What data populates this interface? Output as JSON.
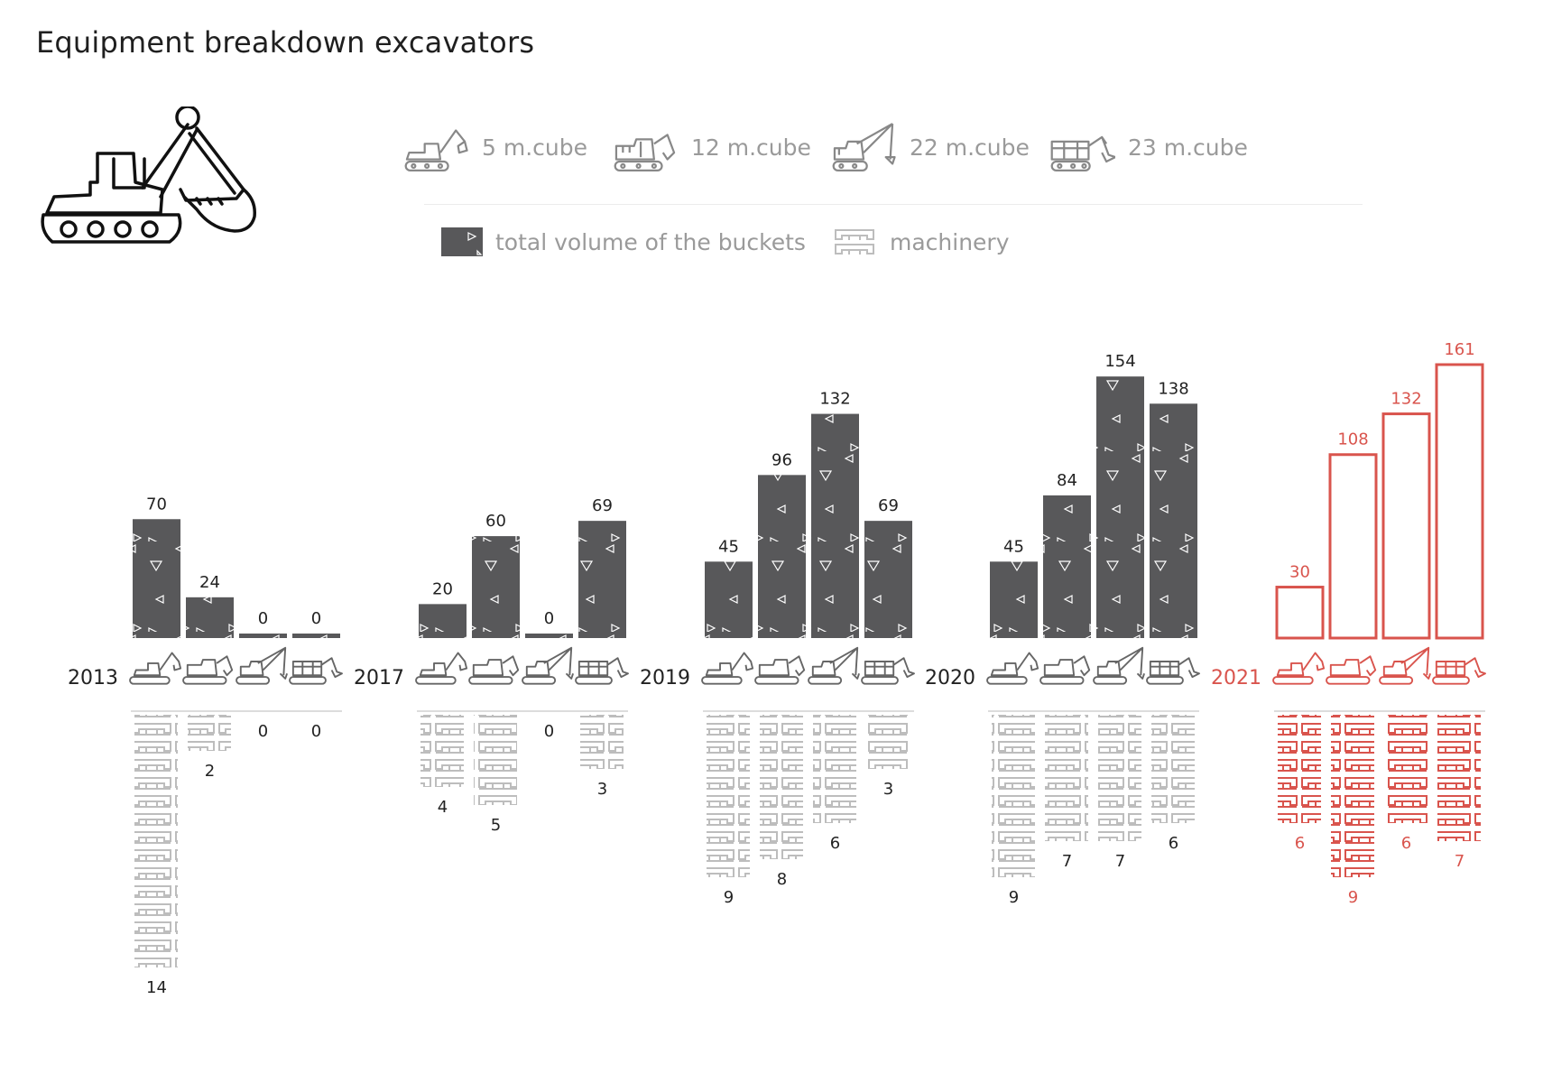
{
  "title": "Equipment breakdown excavators",
  "legend": {
    "equipment": [
      {
        "label": "5 m.cube",
        "icon": "excavator-small-icon"
      },
      {
        "label": "12 m.cube",
        "icon": "excavator-shovel-icon"
      },
      {
        "label": "22 m.cube",
        "icon": "excavator-dragline-icon"
      },
      {
        "label": "23 m.cube",
        "icon": "excavator-large-icon"
      }
    ],
    "volume_label": "total volume of the buckets",
    "machinery_label": "machinery"
  },
  "colors": {
    "bar": "#58585a",
    "track": "#bdbdbd",
    "highlight": "#d9544d",
    "text": "#222222",
    "legend_text": "#9a9a9a"
  },
  "chart_data": {
    "type": "bar",
    "title": "Equipment breakdown excavators",
    "categories": [
      "5 m.cube",
      "12 m.cube",
      "22 m.cube",
      "23 m.cube"
    ],
    "groups": [
      {
        "year": "2013",
        "volume": [
          70,
          24,
          0,
          0
        ],
        "machinery": [
          14,
          2,
          0,
          0
        ],
        "highlight": false
      },
      {
        "year": "2017",
        "volume": [
          20,
          60,
          0,
          69
        ],
        "machinery": [
          4,
          5,
          0,
          3
        ],
        "highlight": false
      },
      {
        "year": "2019",
        "volume": [
          45,
          96,
          132,
          69
        ],
        "machinery": [
          9,
          8,
          6,
          3
        ],
        "highlight": false
      },
      {
        "year": "2020",
        "volume": [
          45,
          84,
          154,
          138
        ],
        "machinery": [
          9,
          7,
          7,
          6
        ],
        "highlight": false
      },
      {
        "year": "2021",
        "volume": [
          30,
          108,
          132,
          161
        ],
        "machinery": [
          6,
          9,
          6,
          7
        ],
        "highlight": true
      }
    ],
    "series": [
      {
        "name": "total volume of the buckets",
        "direction": "up"
      },
      {
        "name": "machinery",
        "direction": "down"
      }
    ]
  }
}
